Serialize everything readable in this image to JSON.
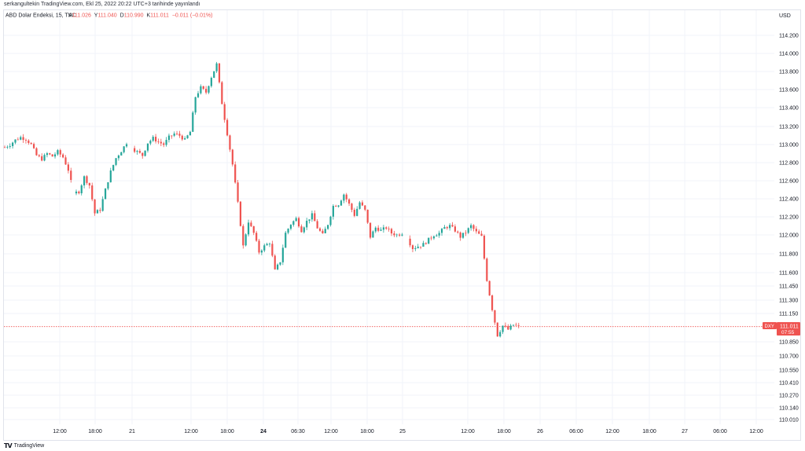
{
  "header": {
    "published_text": "serkangultekin TradingView.com, Ekl 25, 2022 20:22 UTC+3 tarihinde yayınlandı"
  },
  "legend": {
    "symbol": "ABD Dolar Endeksi, 15, TVC",
    "open_label": "A",
    "open_value": "111.026",
    "high_label": "Y",
    "high_value": "111.040",
    "low_label": "D",
    "low_value": "110.990",
    "close_label": "K",
    "close_value": "111.011",
    "change_value": "−0.011 (−0.01%)"
  },
  "footer": {
    "brand_text": "TradingView"
  },
  "price_tag": {
    "symbol": "DXY",
    "price": "111.011",
    "countdown": "07:55"
  },
  "colors": {
    "up": "#26a69a",
    "down": "#ef5350",
    "price_line": "#ef5350",
    "grid": "#f0f3fa"
  },
  "chart_data": {
    "type": "candlestick",
    "currency_label": "USD",
    "y_ticks": [
      "114.200",
      "114.000",
      "113.800",
      "113.600",
      "113.400",
      "113.200",
      "113.000",
      "112.800",
      "112.600",
      "112.400",
      "112.200",
      "112.000",
      "111.800",
      "111.600",
      "111.450",
      "111.300",
      "111.150",
      "110.850",
      "110.700",
      "110.550",
      "110.410",
      "110.270",
      "110.140",
      "110.010"
    ],
    "x_ticks": [
      "12:00",
      "18:00",
      "21",
      "12:00",
      "18:00",
      "24",
      "06:30",
      "12:00",
      "18:00",
      "25",
      "12:00",
      "18:00",
      "26",
      "06:00",
      "12:00",
      "18:00",
      "27",
      "06:00",
      "12:00"
    ],
    "bold_x_ticks": [
      "24"
    ],
    "ylim": [
      110.0,
      114.25
    ],
    "last_price": 111.011,
    "path_close": [
      [
        0,
        112.97
      ],
      [
        2,
        113.0
      ],
      [
        4,
        113.05
      ],
      [
        6,
        113.08
      ],
      [
        8,
        113.06
      ],
      [
        10,
        113.0
      ],
      [
        12,
        112.88
      ],
      [
        14,
        112.84
      ],
      [
        16,
        112.9
      ],
      [
        18,
        112.87
      ],
      [
        20,
        112.92
      ],
      [
        22,
        112.86
      ],
      [
        24,
        112.72
      ],
      [
        26,
        112.46
      ],
      [
        28,
        112.48
      ],
      [
        30,
        112.64
      ],
      [
        32,
        112.55
      ],
      [
        34,
        112.24
      ],
      [
        36,
        112.28
      ],
      [
        38,
        112.5
      ],
      [
        40,
        112.7
      ],
      [
        42,
        112.85
      ],
      [
        44,
        112.93
      ],
      [
        46,
        113.02
      ],
      [
        48,
        112.96
      ],
      [
        50,
        112.92
      ],
      [
        52,
        112.88
      ],
      [
        54,
        113.02
      ],
      [
        56,
        113.07
      ],
      [
        58,
        113.03
      ],
      [
        60,
        113.0
      ],
      [
        62,
        113.08
      ],
      [
        64,
        113.12
      ],
      [
        66,
        113.1
      ],
      [
        68,
        113.05
      ],
      [
        70,
        113.14
      ],
      [
        72,
        113.52
      ],
      [
        74,
        113.62
      ],
      [
        76,
        113.57
      ],
      [
        78,
        113.74
      ],
      [
        80,
        113.88
      ],
      [
        82,
        113.45
      ],
      [
        84,
        113.12
      ],
      [
        86,
        112.78
      ],
      [
        88,
        112.35
      ],
      [
        90,
        111.88
      ],
      [
        92,
        112.15
      ],
      [
        94,
        112.02
      ],
      [
        96,
        111.82
      ],
      [
        98,
        111.88
      ],
      [
        100,
        111.92
      ],
      [
        102,
        111.62
      ],
      [
        104,
        111.72
      ],
      [
        106,
        112.02
      ],
      [
        108,
        112.12
      ],
      [
        110,
        112.18
      ],
      [
        112,
        112.05
      ],
      [
        114,
        112.15
      ],
      [
        116,
        112.22
      ],
      [
        118,
        112.08
      ],
      [
        120,
        112.0
      ],
      [
        122,
        112.12
      ],
      [
        124,
        112.32
      ],
      [
        126,
        112.34
      ],
      [
        128,
        112.45
      ],
      [
        130,
        112.34
      ],
      [
        132,
        112.22
      ],
      [
        134,
        112.36
      ],
      [
        136,
        112.27
      ],
      [
        138,
        111.98
      ],
      [
        140,
        112.08
      ],
      [
        142,
        112.05
      ],
      [
        144,
        112.08
      ],
      [
        146,
        112.02
      ],
      [
        148,
        112.0
      ],
      [
        150,
        112.02
      ],
      [
        152,
        111.96
      ],
      [
        154,
        111.86
      ],
      [
        156,
        111.88
      ],
      [
        158,
        111.9
      ],
      [
        160,
        111.95
      ],
      [
        162,
        112.0
      ],
      [
        164,
        112.02
      ],
      [
        166,
        112.08
      ],
      [
        168,
        112.1
      ],
      [
        170,
        112.05
      ],
      [
        172,
        111.98
      ],
      [
        174,
        112.03
      ],
      [
        176,
        112.1
      ],
      [
        178,
        112.03
      ],
      [
        180,
        111.98
      ],
      [
        182,
        111.52
      ],
      [
        184,
        111.2
      ],
      [
        186,
        110.92
      ],
      [
        188,
        111.02
      ],
      [
        190,
        110.98
      ],
      [
        192,
        111.03
      ],
      [
        194,
        111.011
      ]
    ],
    "gaps": [
      [
        25,
        27
      ],
      [
        46,
        49
      ],
      [
        92,
        93
      ],
      [
        103,
        104
      ],
      [
        150,
        153
      ]
    ],
    "grid": true
  }
}
